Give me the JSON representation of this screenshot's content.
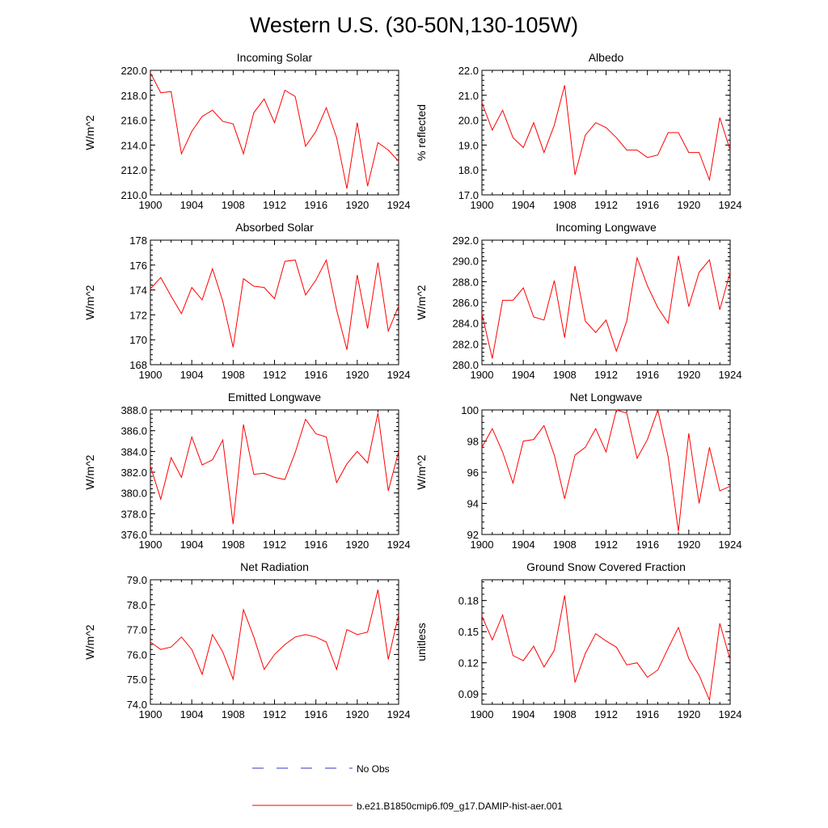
{
  "figure": {
    "title": "Western U.S. (30-50N,130-105W)"
  },
  "legend": {
    "no_obs_label": "No Obs",
    "model_label": "b.e21.B1850cmip6.f09_g17.DAMIP-hist-aer.001",
    "no_obs_color": "#3333cc",
    "model_color": "#ff0000"
  },
  "chart_data": [
    {
      "type": "line",
      "title": "Incoming Solar",
      "ylabel": "W/m^2",
      "xlim": [
        1900,
        1924
      ],
      "ylim": [
        210,
        220
      ],
      "yticks": [
        "210.0",
        "212.0",
        "214.0",
        "216.0",
        "218.0",
        "220.0"
      ],
      "xticks": [
        "1900",
        "1904",
        "1908",
        "1912",
        "1916",
        "1920",
        "1924"
      ],
      "x": [
        1900,
        1901,
        1902,
        1903,
        1904,
        1905,
        1906,
        1907,
        1908,
        1909,
        1910,
        1911,
        1912,
        1913,
        1914,
        1915,
        1916,
        1917,
        1918,
        1919,
        1920,
        1921,
        1922,
        1923,
        1924
      ],
      "series": [
        {
          "values": [
            219.8,
            218.2,
            218.3,
            213.3,
            215.1,
            216.3,
            216.8,
            215.9,
            215.7,
            213.3,
            216.6,
            217.7,
            215.8,
            218.4,
            217.9,
            213.9,
            215.1,
            217.0,
            214.6,
            210.5,
            215.8,
            210.7,
            214.2,
            213.6,
            212.7
          ]
        }
      ]
    },
    {
      "type": "line",
      "title": "Albedo",
      "ylabel": "% reflected",
      "xlim": [
        1900,
        1924
      ],
      "ylim": [
        17,
        22
      ],
      "yticks": [
        "17.0",
        "18.0",
        "19.0",
        "20.0",
        "21.0",
        "22.0"
      ],
      "xticks": [
        "1900",
        "1904",
        "1908",
        "1912",
        "1916",
        "1920",
        "1924"
      ],
      "x": [
        1900,
        1901,
        1902,
        1903,
        1904,
        1905,
        1906,
        1907,
        1908,
        1909,
        1910,
        1911,
        1912,
        1913,
        1914,
        1915,
        1916,
        1917,
        1918,
        1919,
        1920,
        1921,
        1922,
        1923,
        1924
      ],
      "series": [
        {
          "values": [
            20.7,
            19.6,
            20.4,
            19.3,
            18.9,
            19.9,
            18.7,
            19.8,
            21.4,
            17.8,
            19.4,
            19.9,
            19.7,
            19.3,
            18.8,
            18.8,
            18.5,
            18.6,
            19.5,
            19.5,
            18.7,
            18.7,
            17.6,
            20.1,
            18.8
          ]
        }
      ]
    },
    {
      "type": "line",
      "title": "Absorbed Solar",
      "ylabel": "W/m^2",
      "xlim": [
        1900,
        1924
      ],
      "ylim": [
        168,
        178
      ],
      "yticks": [
        "168",
        "170",
        "172",
        "174",
        "176",
        "178"
      ],
      "xticks": [
        "1900",
        "1904",
        "1908",
        "1912",
        "1916",
        "1920",
        "1924"
      ],
      "x": [
        1900,
        1901,
        1902,
        1903,
        1904,
        1905,
        1906,
        1907,
        1908,
        1909,
        1910,
        1911,
        1912,
        1913,
        1914,
        1915,
        1916,
        1917,
        1918,
        1919,
        1920,
        1921,
        1922,
        1923,
        1924
      ],
      "series": [
        {
          "values": [
            174.1,
            175.0,
            173.5,
            172.1,
            174.2,
            173.2,
            175.7,
            173.1,
            169.4,
            174.9,
            174.3,
            174.2,
            173.3,
            176.3,
            176.4,
            173.6,
            174.8,
            176.4,
            172.4,
            169.2,
            175.2,
            170.9,
            176.2,
            170.7,
            172.7
          ]
        }
      ]
    },
    {
      "type": "line",
      "title": "Incoming Longwave",
      "ylabel": "W/m^2",
      "xlim": [
        1900,
        1924
      ],
      "ylim": [
        280,
        292
      ],
      "yticks": [
        "280.0",
        "282.0",
        "284.0",
        "286.0",
        "288.0",
        "290.0",
        "292.0"
      ],
      "xticks": [
        "1900",
        "1904",
        "1908",
        "1912",
        "1916",
        "1920",
        "1924"
      ],
      "x": [
        1900,
        1901,
        1902,
        1903,
        1904,
        1905,
        1906,
        1907,
        1908,
        1909,
        1910,
        1911,
        1912,
        1913,
        1914,
        1915,
        1916,
        1917,
        1918,
        1919,
        1920,
        1921,
        1922,
        1923,
        1924
      ],
      "series": [
        {
          "values": [
            284.9,
            280.6,
            286.2,
            286.2,
            287.4,
            284.6,
            284.3,
            288.1,
            282.6,
            289.5,
            284.2,
            283.1,
            284.3,
            281.3,
            284.2,
            290.3,
            287.6,
            285.5,
            284.0,
            290.5,
            285.6,
            288.9,
            290.1,
            285.3,
            288.9
          ]
        }
      ]
    },
    {
      "type": "line",
      "title": "Emitted Longwave",
      "ylabel": "W/m^2",
      "xlim": [
        1900,
        1924
      ],
      "ylim": [
        376,
        388
      ],
      "yticks": [
        "376.0",
        "378.0",
        "380.0",
        "382.0",
        "384.0",
        "386.0",
        "388.0"
      ],
      "xticks": [
        "1900",
        "1904",
        "1908",
        "1912",
        "1916",
        "1920",
        "1924"
      ],
      "x": [
        1900,
        1901,
        1902,
        1903,
        1904,
        1905,
        1906,
        1907,
        1908,
        1909,
        1910,
        1911,
        1912,
        1913,
        1914,
        1915,
        1916,
        1917,
        1918,
        1919,
        1920,
        1921,
        1922,
        1923,
        1924
      ],
      "series": [
        {
          "values": [
            382.6,
            379.4,
            383.4,
            381.5,
            385.4,
            382.7,
            383.2,
            385.1,
            377.0,
            386.6,
            381.8,
            381.9,
            381.5,
            381.3,
            383.9,
            387.1,
            385.7,
            385.4,
            381.0,
            382.8,
            384.0,
            382.9,
            387.7,
            380.2,
            384.0
          ]
        }
      ]
    },
    {
      "type": "line",
      "title": "Net Longwave",
      "ylabel": "W/m^2",
      "xlim": [
        1900,
        1924
      ],
      "ylim": [
        92,
        100
      ],
      "yticks": [
        "92",
        "94",
        "96",
        "98",
        "100"
      ],
      "xticks": [
        "1900",
        "1904",
        "1908",
        "1912",
        "1916",
        "1920",
        "1924"
      ],
      "x": [
        1900,
        1901,
        1902,
        1903,
        1904,
        1905,
        1906,
        1907,
        1908,
        1909,
        1910,
        1911,
        1912,
        1913,
        1914,
        1915,
        1916,
        1917,
        1918,
        1919,
        1920,
        1921,
        1922,
        1923,
        1924
      ],
      "series": [
        {
          "values": [
            97.6,
            98.8,
            97.3,
            95.3,
            98.0,
            98.1,
            99.0,
            97.1,
            94.3,
            97.1,
            97.6,
            98.8,
            97.3,
            100.0,
            99.8,
            96.9,
            98.1,
            100.0,
            97.0,
            92.2,
            98.5,
            94.0,
            97.6,
            94.8,
            95.1
          ]
        }
      ]
    },
    {
      "type": "line",
      "title": "Net Radiation",
      "ylabel": "W/m^2",
      "xlim": [
        1900,
        1924
      ],
      "ylim": [
        74,
        79
      ],
      "yticks": [
        "74.0",
        "75.0",
        "76.0",
        "77.0",
        "78.0",
        "79.0"
      ],
      "xticks": [
        "1900",
        "1904",
        "1908",
        "1912",
        "1916",
        "1920",
        "1924"
      ],
      "x": [
        1900,
        1901,
        1902,
        1903,
        1904,
        1905,
        1906,
        1907,
        1908,
        1909,
        1910,
        1911,
        1912,
        1913,
        1914,
        1915,
        1916,
        1917,
        1918,
        1919,
        1920,
        1921,
        1922,
        1923,
        1924
      ],
      "series": [
        {
          "values": [
            76.5,
            76.2,
            76.3,
            76.7,
            76.2,
            75.2,
            76.8,
            76.1,
            75.0,
            77.8,
            76.7,
            75.4,
            76.0,
            76.4,
            76.7,
            76.8,
            76.7,
            76.5,
            75.4,
            77.0,
            76.8,
            76.9,
            78.6,
            75.8,
            77.6
          ]
        }
      ]
    },
    {
      "type": "line",
      "title": "Ground Snow Covered Fraction",
      "ylabel": "unitless",
      "xlim": [
        1900,
        1924
      ],
      "ylim": [
        0.08,
        0.2
      ],
      "yticks": [
        "0.09",
        "0.12",
        "0.15",
        "0.18"
      ],
      "ytick_values": [
        0.09,
        0.12,
        0.15,
        0.18
      ],
      "xticks": [
        "1900",
        "1904",
        "1908",
        "1912",
        "1916",
        "1920",
        "1924"
      ],
      "x": [
        1900,
        1901,
        1902,
        1903,
        1904,
        1905,
        1906,
        1907,
        1908,
        1909,
        1910,
        1911,
        1912,
        1913,
        1914,
        1915,
        1916,
        1917,
        1918,
        1919,
        1920,
        1921,
        1922,
        1923,
        1924
      ],
      "series": [
        {
          "values": [
            0.165,
            0.142,
            0.166,
            0.127,
            0.122,
            0.136,
            0.116,
            0.132,
            0.185,
            0.101,
            0.129,
            0.148,
            0.141,
            0.135,
            0.118,
            0.12,
            0.106,
            0.113,
            0.134,
            0.154,
            0.124,
            0.108,
            0.084,
            0.158,
            0.123
          ]
        }
      ]
    }
  ]
}
